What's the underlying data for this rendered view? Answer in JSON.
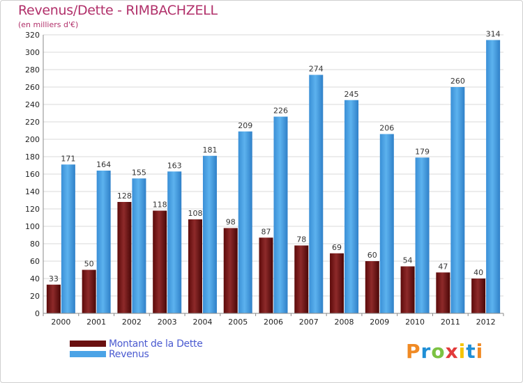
{
  "chart_data": {
    "type": "bar",
    "title": "Revenus/Dette - RIMBACHZELL",
    "subtitle": "(en milliers d'€)",
    "categories": [
      "2000",
      "2001",
      "2002",
      "2003",
      "2004",
      "2005",
      "2006",
      "2007",
      "2008",
      "2009",
      "2010",
      "2011",
      "2012"
    ],
    "series": [
      {
        "name": "Montant de la Dette",
        "values": [
          33,
          50,
          128,
          118,
          108,
          98,
          87,
          78,
          69,
          60,
          54,
          47,
          40
        ],
        "color": "#7a1616"
      },
      {
        "name": "Revenus",
        "values": [
          171,
          164,
          155,
          163,
          181,
          209,
          226,
          274,
          245,
          206,
          179,
          260,
          314
        ],
        "color": "#4ba3e6"
      }
    ],
    "ylim": [
      0,
      320
    ],
    "yticks": [
      0,
      20,
      40,
      60,
      80,
      100,
      120,
      140,
      160,
      180,
      200,
      220,
      240,
      260,
      280,
      300,
      320
    ],
    "grid": true,
    "legend_position": "bottom-left"
  },
  "logo": {
    "letters": [
      "P",
      "r",
      "o",
      "x",
      "i",
      "t",
      "i"
    ],
    "colors": [
      "#f08a24",
      "#1f8fd6",
      "#7cc242",
      "#e23a3a",
      "#f5c400",
      "#1f8fd6",
      "#f08a24"
    ]
  }
}
